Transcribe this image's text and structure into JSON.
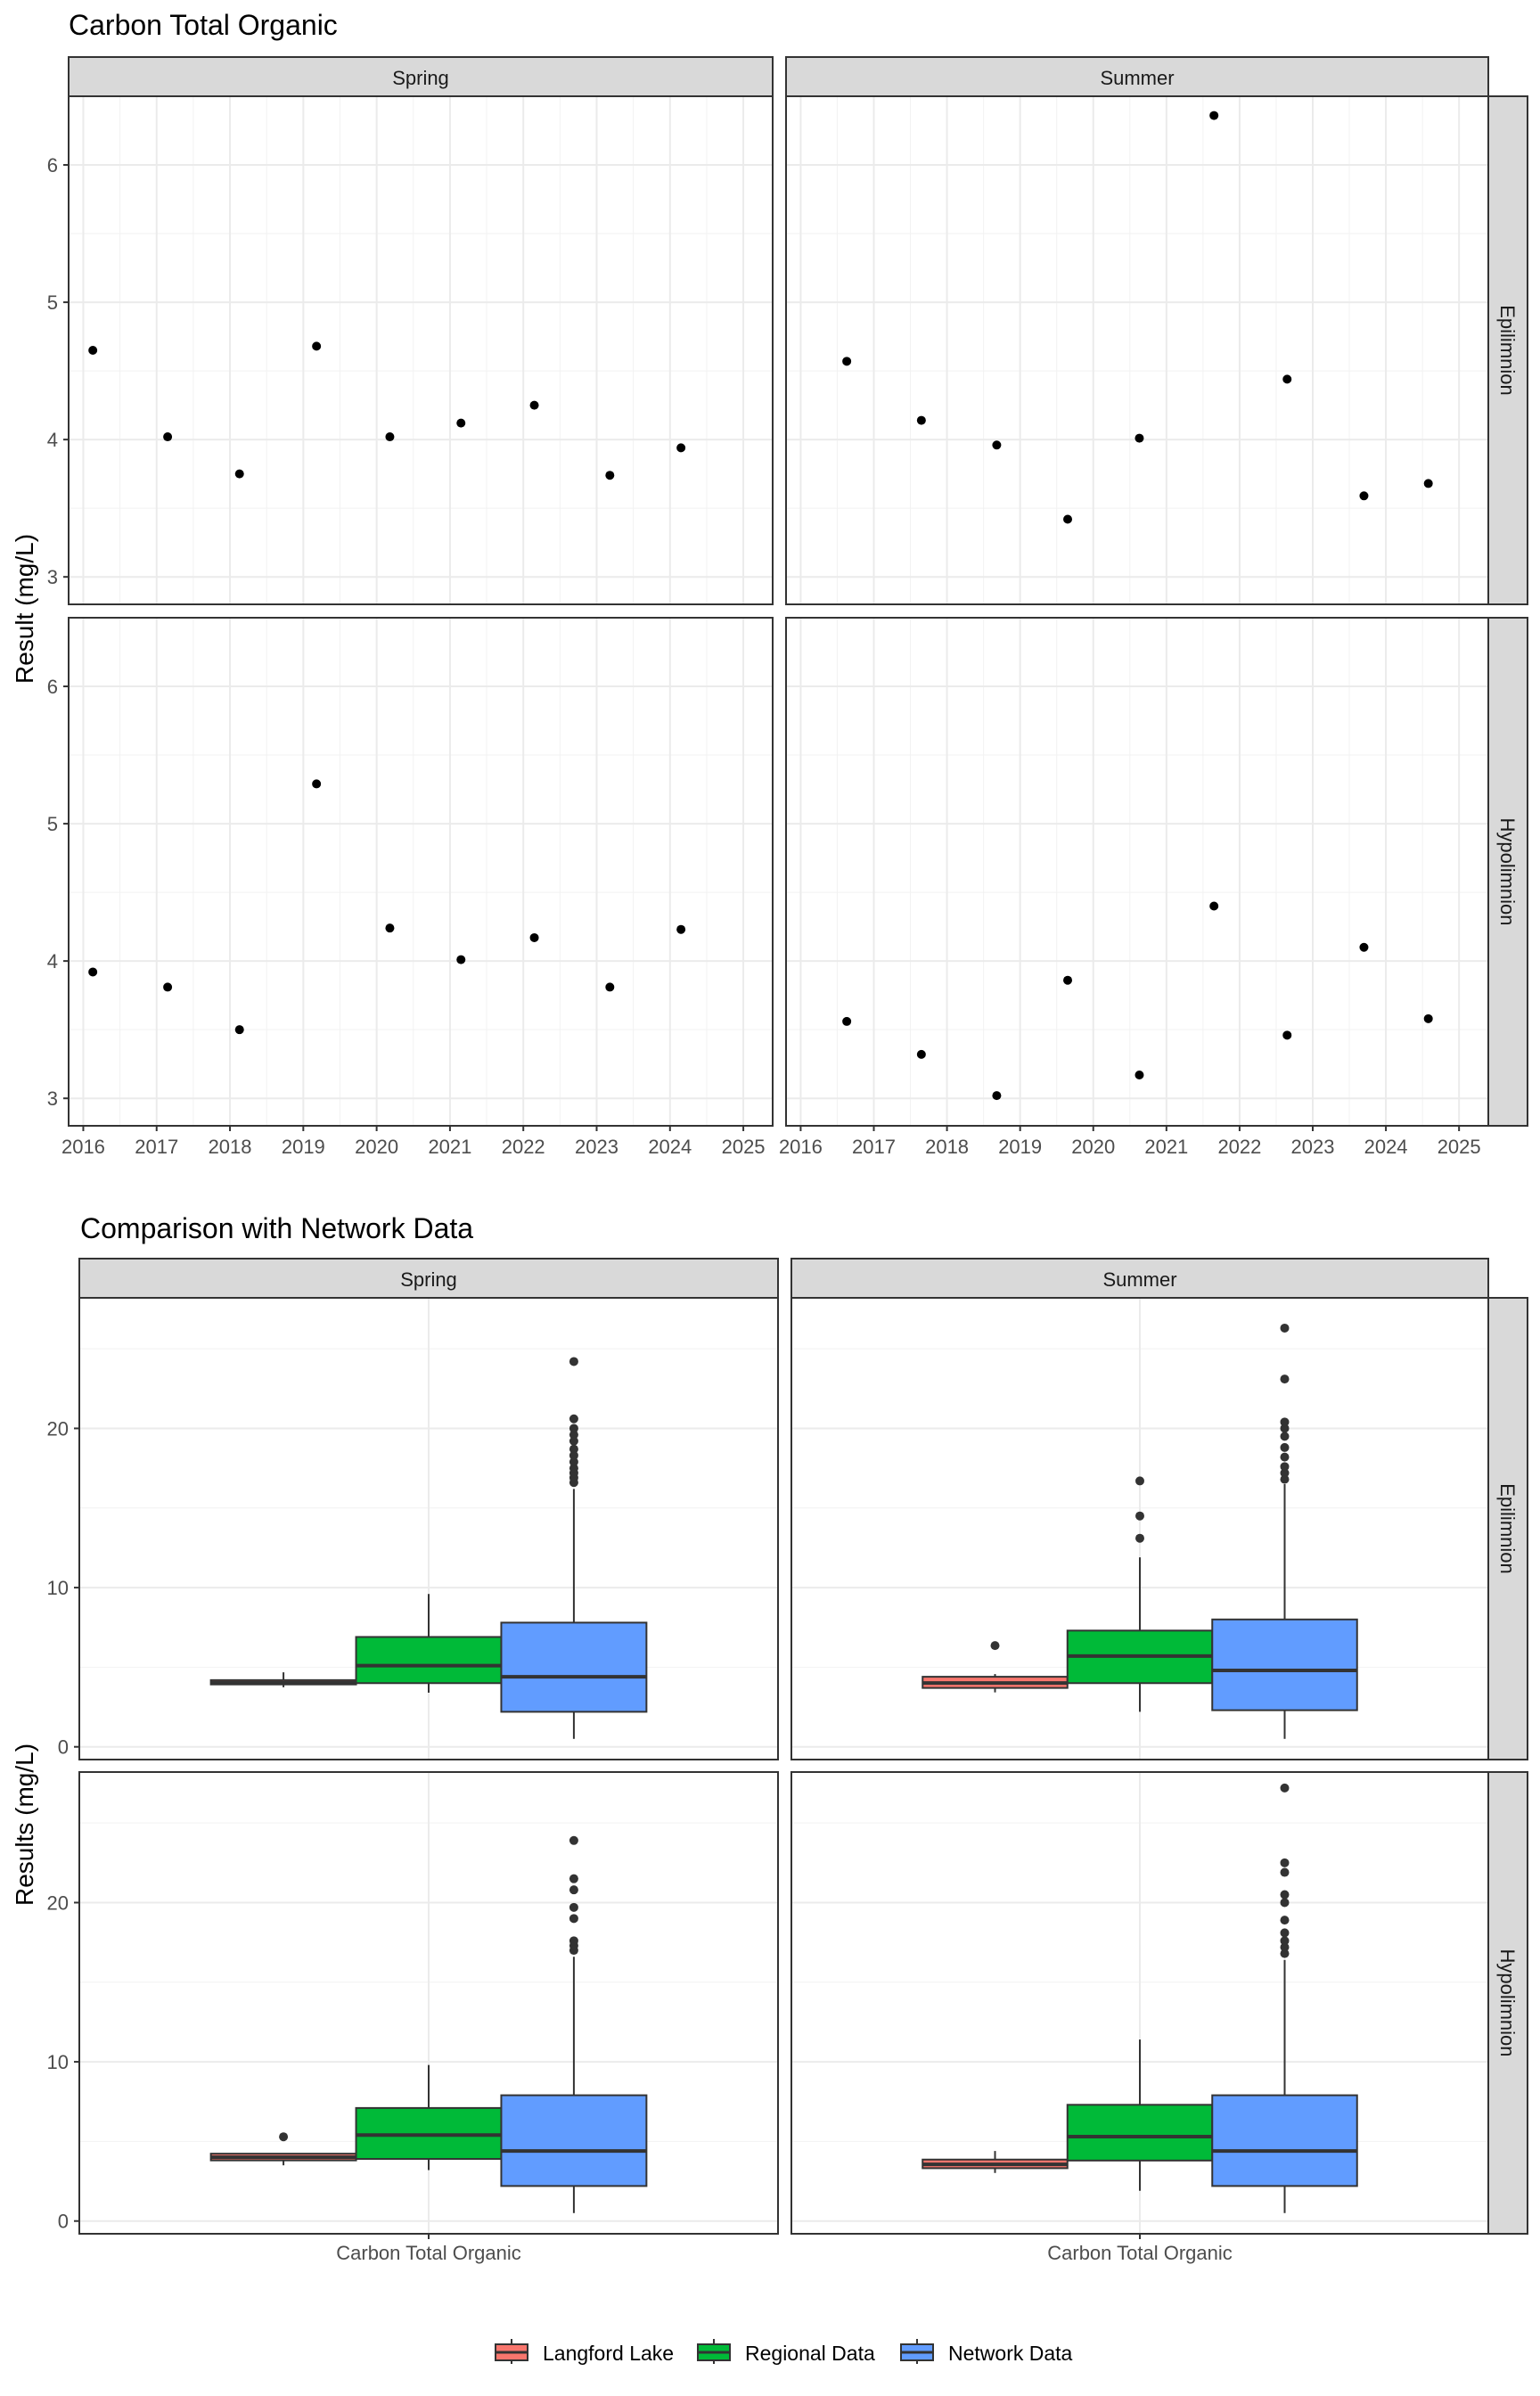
{
  "chart_data": [
    {
      "type": "scatter",
      "title": "Carbon Total Organic",
      "xlabel": "",
      "ylabel": "Result (mg/L)",
      "facet_columns": [
        "Spring",
        "Summer"
      ],
      "facet_rows": [
        "Epilimnion",
        "Hypolimnion"
      ],
      "xlim": [
        2015.8,
        2025.4
      ],
      "ylim": [
        2.8,
        6.5
      ],
      "x_ticks": [
        "2016",
        "2017",
        "2018",
        "2019",
        "2020",
        "2021",
        "2022",
        "2023",
        "2024",
        "2025"
      ],
      "y_ticks": [
        "3",
        "4",
        "5",
        "6"
      ],
      "grid": true,
      "panels": [
        {
          "column": "Spring",
          "row": "Epilimnion",
          "x": [
            2016.13,
            2017.15,
            2018.13,
            2019.18,
            2020.18,
            2021.15,
            2022.15,
            2023.18,
            2024.15
          ],
          "y": [
            4.65,
            4.02,
            3.75,
            4.68,
            4.02,
            4.12,
            4.25,
            3.74,
            3.94
          ]
        },
        {
          "column": "Summer",
          "row": "Epilimnion",
          "x": [
            2016.63,
            2017.65,
            2018.68,
            2019.65,
            2020.63,
            2021.65,
            2022.65,
            2023.7,
            2024.58
          ],
          "y": [
            4.57,
            4.14,
            3.96,
            3.42,
            4.01,
            6.36,
            4.44,
            3.59,
            3.68
          ]
        },
        {
          "column": "Spring",
          "row": "Hypolimnion",
          "x": [
            2016.13,
            2017.15,
            2018.13,
            2019.18,
            2020.18,
            2021.15,
            2022.15,
            2023.18,
            2024.15
          ],
          "y": [
            3.92,
            3.81,
            3.5,
            5.29,
            4.24,
            4.01,
            4.17,
            3.81,
            4.23
          ]
        },
        {
          "column": "Summer",
          "row": "Hypolimnion",
          "x": [
            2016.63,
            2017.65,
            2018.68,
            2019.65,
            2020.63,
            2021.65,
            2022.65,
            2023.7,
            2024.58
          ],
          "y": [
            3.56,
            3.32,
            3.02,
            3.86,
            3.17,
            4.4,
            3.46,
            4.1,
            3.58
          ]
        }
      ]
    },
    {
      "type": "box",
      "title": "Comparison with Network Data",
      "xlabel": "",
      "ylabel": "Results (mg/L)",
      "facet_columns": [
        "Spring",
        "Summer"
      ],
      "facet_rows": [
        "Epilimnion",
        "Hypolimnion"
      ],
      "categories": [
        "Carbon Total Organic"
      ],
      "ylim": [
        -0.8,
        28.2
      ],
      "y_ticks": [
        "0",
        "10",
        "20"
      ],
      "grid": true,
      "legend_position": "bottom",
      "series": [
        {
          "name": "Langford Lake",
          "color": "#F8766D"
        },
        {
          "name": "Regional Data",
          "color": "#00BA38"
        },
        {
          "name": "Network Data",
          "color": "#619CFF"
        }
      ],
      "panels": [
        {
          "column": "Spring",
          "row": "Epilimnion",
          "boxes": [
            {
              "series": "Langford Lake",
              "whisker_low": 3.74,
              "q1": 3.92,
              "median": 4.02,
              "q3": 4.19,
              "whisker_high": 4.68,
              "outliers": []
            },
            {
              "series": "Regional Data",
              "whisker_low": 3.4,
              "q1": 4.0,
              "median": 5.1,
              "q3": 6.9,
              "whisker_high": 9.6,
              "outliers": []
            },
            {
              "series": "Network Data",
              "whisker_low": 0.5,
              "q1": 2.2,
              "median": 4.4,
              "q3": 7.8,
              "whisker_high": 16.2,
              "outliers": [
                16.6,
                16.9,
                17.2,
                17.5,
                17.9,
                18.3,
                18.7,
                19.2,
                19.6,
                20.0,
                20.6,
                24.2
              ]
            }
          ]
        },
        {
          "column": "Summer",
          "row": "Epilimnion",
          "boxes": [
            {
              "series": "Langford Lake",
              "whisker_low": 3.42,
              "q1": 3.7,
              "median": 4.01,
              "q3": 4.4,
              "whisker_high": 4.57,
              "outliers": [
                6.36
              ]
            },
            {
              "series": "Regional Data",
              "whisker_low": 2.2,
              "q1": 4.0,
              "median": 5.7,
              "q3": 7.3,
              "whisker_high": 11.9,
              "outliers": [
                13.1,
                14.5,
                16.7
              ]
            },
            {
              "series": "Network Data",
              "whisker_low": 0.5,
              "q1": 2.3,
              "median": 4.8,
              "q3": 8.0,
              "whisker_high": 16.5,
              "outliers": [
                16.8,
                17.2,
                17.6,
                18.2,
                18.8,
                19.5,
                20.0,
                20.4,
                23.1,
                26.3
              ]
            }
          ]
        },
        {
          "column": "Spring",
          "row": "Hypolimnion",
          "boxes": [
            {
              "series": "Langford Lake",
              "whisker_low": 3.5,
              "q1": 3.81,
              "median": 4.01,
              "q3": 4.23,
              "whisker_high": 4.24,
              "outliers": [
                5.29
              ]
            },
            {
              "series": "Regional Data",
              "whisker_low": 3.2,
              "q1": 3.9,
              "median": 5.4,
              "q3": 7.1,
              "whisker_high": 9.8,
              "outliers": []
            },
            {
              "series": "Network Data",
              "whisker_low": 0.5,
              "q1": 2.2,
              "median": 4.4,
              "q3": 7.9,
              "whisker_high": 16.6,
              "outliers": [
                17.0,
                17.3,
                17.6,
                19.0,
                19.7,
                20.8,
                21.5,
                23.9
              ]
            }
          ]
        },
        {
          "column": "Summer",
          "row": "Hypolimnion",
          "boxes": [
            {
              "series": "Langford Lake",
              "whisker_low": 3.02,
              "q1": 3.32,
              "median": 3.56,
              "q3": 3.86,
              "whisker_high": 4.4,
              "outliers": []
            },
            {
              "series": "Regional Data",
              "whisker_low": 1.9,
              "q1": 3.8,
              "median": 5.3,
              "q3": 7.3,
              "whisker_high": 11.4,
              "outliers": []
            },
            {
              "series": "Network Data",
              "whisker_low": 0.5,
              "q1": 2.2,
              "median": 4.4,
              "q3": 7.9,
              "whisker_high": 16.4,
              "outliers": [
                16.8,
                17.2,
                17.6,
                18.1,
                18.9,
                20.0,
                20.5,
                21.9,
                22.5,
                27.2
              ]
            }
          ]
        }
      ],
      "x_tick_labels": [
        "Carbon Total Organic",
        "Carbon Total Organic"
      ]
    }
  ]
}
